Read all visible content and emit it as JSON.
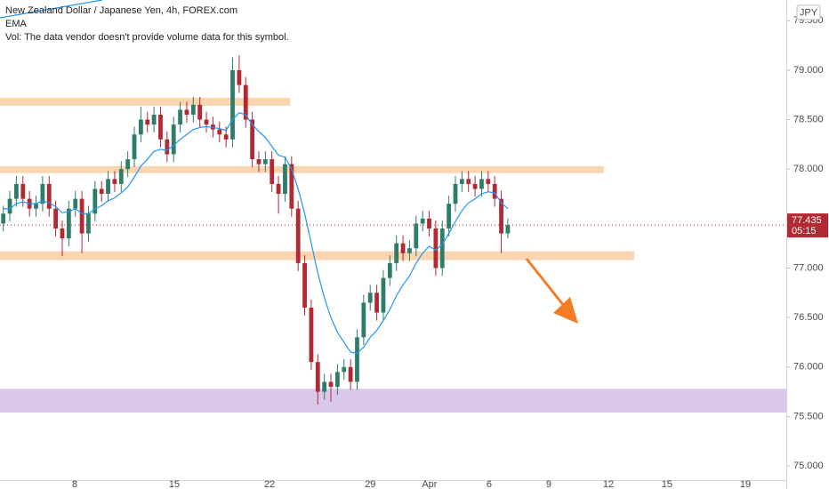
{
  "chart_data": {
    "type": "candlestick",
    "title": "New Zealand Dollar / Japanese Yen, 4h, FOREX.com",
    "volume_note": "Vol: The data vendor doesn't provide volume data for this symbol.",
    "currency": "JPY",
    "countdown": "05:15",
    "up_color": "#2e7d6b",
    "down_color": "#b22833",
    "grid": false,
    "x": [
      1,
      3,
      5,
      7,
      9,
      11,
      13,
      15,
      17,
      19,
      21,
      23,
      25,
      27,
      29,
      31,
      33,
      35,
      37,
      39,
      41,
      43,
      45,
      47,
      49,
      51,
      53,
      55,
      57,
      59,
      61,
      63,
      65,
      67,
      69,
      71,
      73,
      75,
      77,
      79,
      81,
      83,
      85,
      87,
      89,
      91,
      93,
      95,
      97,
      99,
      101,
      103,
      105,
      107,
      109,
      111,
      113,
      115,
      117,
      119,
      121,
      123,
      125,
      127,
      129,
      131,
      133,
      135,
      137,
      139,
      141,
      143,
      145,
      147,
      149,
      151,
      153,
      155
    ],
    "open": [
      77.45,
      77.55,
      77.7,
      77.85,
      77.7,
      77.6,
      77.65,
      77.85,
      77.6,
      77.4,
      77.3,
      77.6,
      77.7,
      77.35,
      77.55,
      77.8,
      77.75,
      77.9,
      77.85,
      78.0,
      78.1,
      78.35,
      78.5,
      78.45,
      78.55,
      78.3,
      78.15,
      78.45,
      78.6,
      78.55,
      78.65,
      78.5,
      78.45,
      78.4,
      78.35,
      78.3,
      79.0,
      78.85,
      78.5,
      78.1,
      78.05,
      78.1,
      77.85,
      77.75,
      78.05,
      77.6,
      77.05,
      76.6,
      76.05,
      75.75,
      75.85,
      75.8,
      75.95,
      76.0,
      75.85,
      76.3,
      76.65,
      76.75,
      76.55,
      76.9,
      77.05,
      77.25,
      77.15,
      77.2,
      77.45,
      77.5,
      77.4,
      77.0,
      77.4,
      77.65,
      77.85,
      77.9,
      77.85,
      77.8,
      77.9,
      77.85,
      77.7,
      77.35
    ],
    "high": [
      77.63,
      77.78,
      77.93,
      77.93,
      77.78,
      77.73,
      77.93,
      77.93,
      77.68,
      77.48,
      77.68,
      77.78,
      77.78,
      77.63,
      77.88,
      77.88,
      77.98,
      77.98,
      78.08,
      78.18,
      78.43,
      78.63,
      78.58,
      78.63,
      78.63,
      78.38,
      78.53,
      78.68,
      78.68,
      78.73,
      78.73,
      78.58,
      78.53,
      78.48,
      78.43,
      79.13,
      79.15,
      78.93,
      78.58,
      78.18,
      78.18,
      78.18,
      77.93,
      78.13,
      78.13,
      77.68,
      77.13,
      76.68,
      76.13,
      75.93,
      75.93,
      76.03,
      76.08,
      76.08,
      76.38,
      76.73,
      76.83,
      76.83,
      76.98,
      77.13,
      77.33,
      77.33,
      77.28,
      77.53,
      77.58,
      77.58,
      77.48,
      77.48,
      77.73,
      77.93,
      77.98,
      77.98,
      77.93,
      77.98,
      77.98,
      77.93,
      77.78,
      77.5
    ],
    "low": [
      77.37,
      77.47,
      77.62,
      77.62,
      77.52,
      77.52,
      77.57,
      77.52,
      77.32,
      77.12,
      77.22,
      77.52,
      77.15,
      77.27,
      77.47,
      77.67,
      77.67,
      77.77,
      77.77,
      77.92,
      78.02,
      78.27,
      78.37,
      78.37,
      78.22,
      78.07,
      78.07,
      78.37,
      78.47,
      78.47,
      78.42,
      78.37,
      78.32,
      78.27,
      78.22,
      78.22,
      78.77,
      78.42,
      78.02,
      77.97,
      77.97,
      77.77,
      77.55,
      77.67,
      77.52,
      76.97,
      76.52,
      75.97,
      75.62,
      75.67,
      75.65,
      75.72,
      75.87,
      75.77,
      75.77,
      76.22,
      76.57,
      76.47,
      76.47,
      76.82,
      76.97,
      77.07,
      77.07,
      77.12,
      77.37,
      77.32,
      76.92,
      76.92,
      77.32,
      77.57,
      77.77,
      77.77,
      77.72,
      77.72,
      77.77,
      77.62,
      77.15,
      77.3
    ],
    "close": [
      77.55,
      77.7,
      77.85,
      77.7,
      77.6,
      77.65,
      77.85,
      77.6,
      77.4,
      77.3,
      77.6,
      77.7,
      77.35,
      77.55,
      77.8,
      77.75,
      77.9,
      77.85,
      78.0,
      78.1,
      78.35,
      78.5,
      78.45,
      78.55,
      78.3,
      78.15,
      78.45,
      78.6,
      78.55,
      78.65,
      78.5,
      78.45,
      78.4,
      78.35,
      78.3,
      79.0,
      78.85,
      78.5,
      78.1,
      78.05,
      78.1,
      77.85,
      77.75,
      78.05,
      77.6,
      77.05,
      76.6,
      76.05,
      75.75,
      75.85,
      75.8,
      75.95,
      76.0,
      75.85,
      76.3,
      76.65,
      76.75,
      76.55,
      76.9,
      77.05,
      77.25,
      77.15,
      77.2,
      77.45,
      77.5,
      77.4,
      77.0,
      77.4,
      77.65,
      77.85,
      77.9,
      77.85,
      77.8,
      77.9,
      77.85,
      77.7,
      77.35,
      77.435
    ],
    "ema": {
      "name": "EMA",
      "color": "#2196f3",
      "values": [
        77.6,
        77.6,
        77.65,
        77.67,
        77.65,
        77.65,
        77.68,
        77.66,
        77.62,
        77.56,
        77.57,
        77.6,
        77.55,
        77.55,
        77.6,
        77.63,
        77.68,
        77.71,
        77.76,
        77.82,
        77.92,
        78.03,
        78.1,
        78.18,
        78.2,
        78.19,
        78.24,
        78.3,
        78.35,
        78.4,
        78.42,
        78.43,
        78.42,
        78.41,
        78.39,
        78.5,
        78.57,
        78.55,
        78.45,
        78.38,
        78.32,
        78.23,
        78.14,
        78.12,
        78.0,
        77.8,
        77.55,
        77.25,
        76.95,
        76.7,
        76.5,
        76.35,
        76.25,
        76.15,
        76.14,
        76.2,
        76.3,
        76.37,
        76.47,
        76.58,
        76.72,
        76.83,
        76.92,
        77.05,
        77.15,
        77.22,
        77.18,
        77.24,
        77.35,
        77.47,
        77.58,
        77.66,
        77.7,
        77.75,
        77.77,
        77.76,
        77.66,
        77.6
      ]
    },
    "zones": [
      {
        "y1": 78.72,
        "y2": 78.64,
        "x_end": 88.6,
        "color": "#fbd5b0"
      },
      {
        "y1": 78.03,
        "y2": 77.96,
        "x_end": 184.3,
        "color": "#fbd5b0"
      },
      {
        "y1": 77.17,
        "y2": 77.08,
        "x_end": 193.6,
        "color": "#fbd5b0"
      },
      {
        "y1": 75.78,
        "y2": 75.54,
        "x_end": 240,
        "color": "#d9c8ea"
      }
    ],
    "xlim": [
      0,
      240
    ],
    "xticks": [
      {
        "value": 22.8,
        "label": "8"
      },
      {
        "value": 53.2,
        "label": "15"
      },
      {
        "value": 82.3,
        "label": "22"
      },
      {
        "value": 113,
        "label": "29"
      },
      {
        "value": 131.1,
        "label": "Apr"
      },
      {
        "value": 149.3,
        "label": "6"
      },
      {
        "value": 167.5,
        "label": "9"
      },
      {
        "value": 185.7,
        "label": "12"
      },
      {
        "value": 203.6,
        "label": "15"
      },
      {
        "value": 227.5,
        "label": "19"
      }
    ],
    "ylim": [
      74.857,
      79.709
    ],
    "yticks": [
      {
        "value": 75.0,
        "label": "75.000"
      },
      {
        "value": 75.5,
        "label": "75.500"
      },
      {
        "value": 76.0,
        "label": "76.000"
      },
      {
        "value": 76.5,
        "label": "76.500"
      },
      {
        "value": 77.0,
        "label": "77.000"
      },
      {
        "value": 77.5,
        "label": "77.500"
      },
      {
        "value": 78.0,
        "label": "78.000"
      },
      {
        "value": 78.5,
        "label": "78.500"
      },
      {
        "value": 79.0,
        "label": "79.000"
      },
      {
        "value": 79.5,
        "label": "79.500"
      }
    ]
  }
}
